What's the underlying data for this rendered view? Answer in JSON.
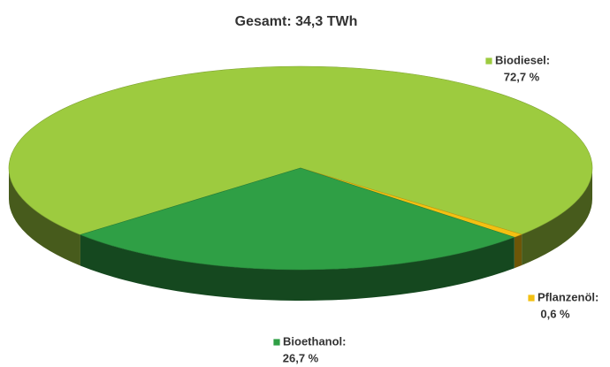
{
  "chart_data": {
    "type": "pie",
    "title": "Gesamt: 34,3 TWh",
    "categories": [
      "Biodiesel:",
      "Pflanzenöl:",
      "Bioethanol:"
    ],
    "values": [
      72.7,
      0.6,
      26.7
    ],
    "value_labels": [
      "72,7 %",
      "0,6 %",
      "26,7 %"
    ],
    "colors": [
      "#9dcb3f",
      "#f3c012",
      "#2f9f45"
    ]
  }
}
